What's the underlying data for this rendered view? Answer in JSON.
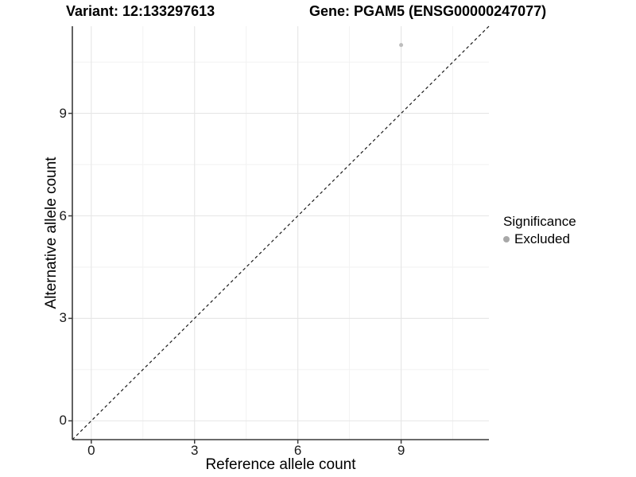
{
  "chart_data": {
    "type": "scatter",
    "title_left": "Variant: 12:133297613",
    "title_right": "Gene: PGAM5 (ENSG00000247077)",
    "xlabel": "Reference allele count",
    "ylabel": "Alternative allele count",
    "xlim": [
      -0.55,
      11.55
    ],
    "ylim": [
      -0.55,
      11.55
    ],
    "x_ticks": [
      0,
      3,
      6,
      9
    ],
    "y_ticks": [
      0,
      3,
      6,
      9
    ],
    "x_minor_ticks": [
      1.5,
      4.5,
      7.5,
      10.5
    ],
    "y_minor_ticks": [
      1.5,
      4.5,
      7.5,
      10.5
    ],
    "grid": "major and minor gridlines on white panel",
    "series": [
      {
        "name": "Excluded",
        "color": "#bdbdbd",
        "points": [
          {
            "x": 9,
            "y": 11
          }
        ]
      }
    ],
    "reference_line": {
      "equation": "y = x",
      "style": "dashed",
      "color": "#1a1a1a"
    },
    "legend": {
      "title": "Significance",
      "position": "right",
      "entries": [
        {
          "label": "Excluded",
          "color": "#a8a8a8"
        }
      ]
    }
  },
  "colors": {
    "background": "#ffffff",
    "grid_major": "#e6e6e6",
    "grid_minor": "#f2f2f2",
    "axis_line": "#3a3a3a",
    "tick_text": "#1a1a1a",
    "title_text": "#000000",
    "dashed_line": "#1a1a1a"
  }
}
